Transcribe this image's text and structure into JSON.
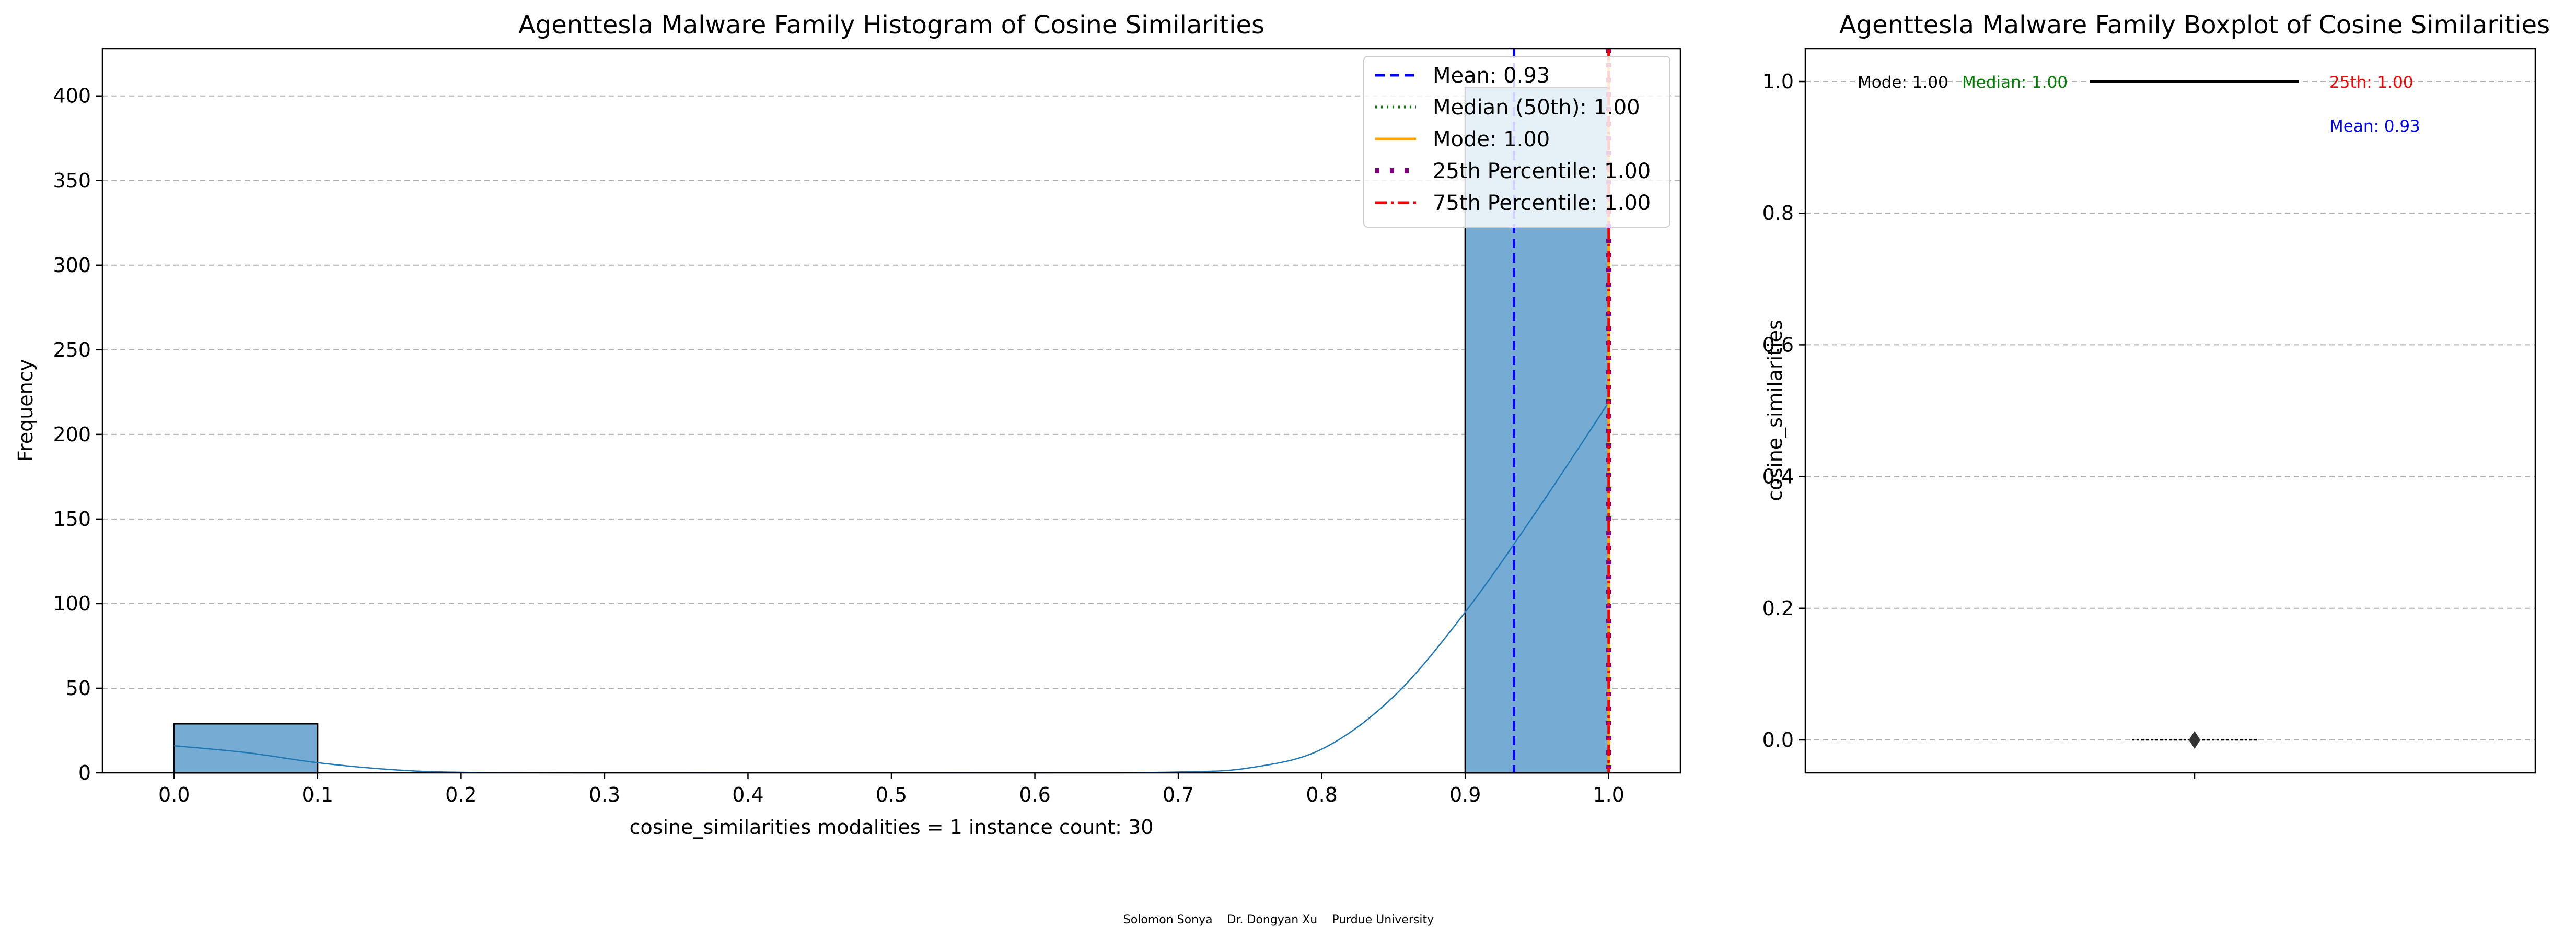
{
  "footer": "Solomon Sonya    Dr. Dongyan Xu    Purdue University",
  "colors": {
    "bar": "#76abd3",
    "kde": "#1f77b4",
    "mean": "#0000ff",
    "median": "#008000",
    "mode": "#ffa500",
    "p25": "#800080",
    "p75": "#ff0000"
  },
  "chart_data": [
    {
      "type": "bar",
      "title": "Agenttesla Malware Family Histogram of Cosine Similarities",
      "xlabel": "cosine_similarities    modalities = 1    instance count: 30",
      "ylabel": "Frequency",
      "xlim": [
        -0.05,
        1.05
      ],
      "ylim": [
        0,
        428
      ],
      "xticks": [
        "0.0",
        "0.1",
        "0.2",
        "0.3",
        "0.4",
        "0.5",
        "0.6",
        "0.7",
        "0.8",
        "0.9",
        "1.0"
      ],
      "yticks": [
        "0",
        "50",
        "100",
        "150",
        "200",
        "250",
        "300",
        "350",
        "400"
      ],
      "grid": "y",
      "bins": [
        {
          "x0": 0.0,
          "x1": 0.1,
          "count": 29
        },
        {
          "x0": 0.9,
          "x1": 1.0,
          "count": 405
        }
      ],
      "kde": {
        "x": [
          0.0,
          0.05,
          0.1,
          0.15,
          0.2,
          0.3,
          0.6,
          0.7,
          0.75,
          0.8,
          0.85,
          0.9,
          0.95,
          1.0
        ],
        "y": [
          16,
          12,
          6,
          2,
          0.3,
          0,
          0,
          0.5,
          3,
          14,
          45,
          95,
          155,
          219
        ]
      },
      "reference_lines": [
        {
          "label": "Mean: 0.93",
          "x": 0.934,
          "style": "dashed",
          "color": "#0000ff"
        },
        {
          "label": "Median (50th): 1.00",
          "x": 1.0,
          "style": "dotted",
          "color": "#008000"
        },
        {
          "label": "Mode: 1.00",
          "x": 1.0,
          "style": "solid",
          "color": "#ffa500"
        },
        {
          "label": "25th Percentile: 1.00",
          "x": 1.0,
          "style": "thick-dotted",
          "color": "#800080"
        },
        {
          "label": "75th Percentile: 1.00",
          "x": 1.0,
          "style": "dashdot",
          "color": "#ff0000"
        }
      ],
      "legend_position": "top-right"
    },
    {
      "type": "box",
      "title": "Agenttesla Malware Family Boxplot of Cosine Similarities",
      "ylabel": "cosine_similarities",
      "ylim": [
        -0.05,
        1.05
      ],
      "yticks": [
        "0.0",
        "0.2",
        "0.4",
        "0.6",
        "0.8",
        "1.0"
      ],
      "grid": "y",
      "box": {
        "q1": 1.0,
        "median": 1.0,
        "q3": 1.0,
        "whisker_low": 1.0,
        "whisker_high": 1.0
      },
      "outliers_at": 0.0,
      "annotations": [
        {
          "text": "Mode: 1.00",
          "color": "#000000",
          "y": 1.0
        },
        {
          "text": "Median: 1.00",
          "color": "#008000",
          "y": 1.0
        },
        {
          "text": "25th: 1.00",
          "color": "#ff0000",
          "y": 1.0
        },
        {
          "text": "Mean: 0.93",
          "color": "#0000ff",
          "y": 0.934
        }
      ]
    }
  ]
}
